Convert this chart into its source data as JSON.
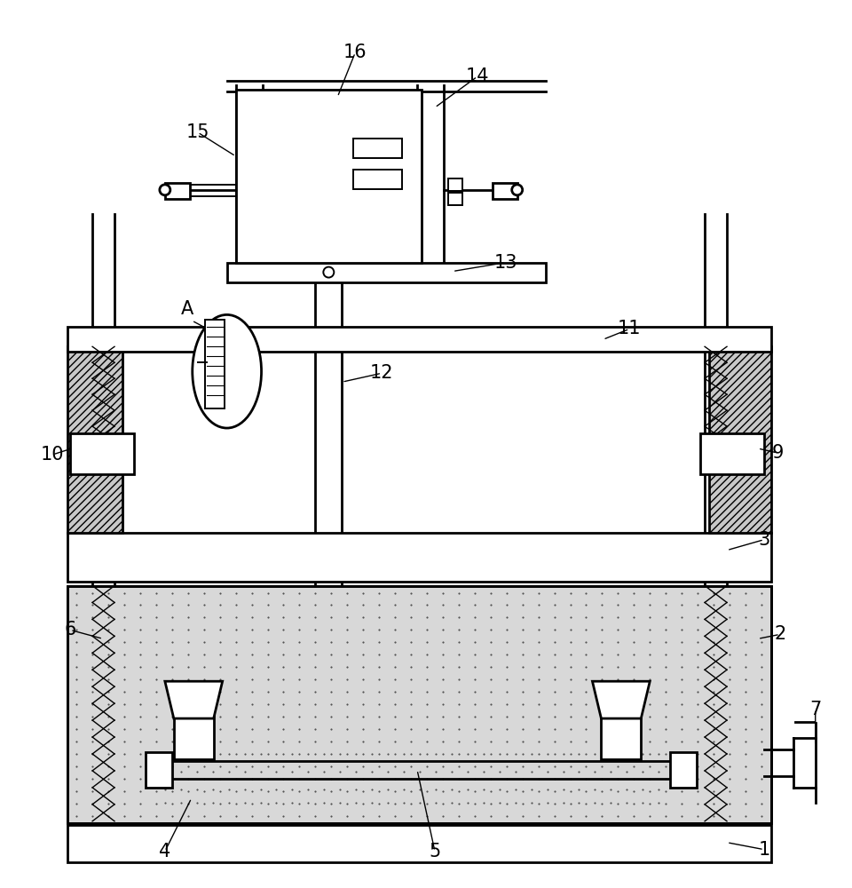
{
  "bg_color": "#ffffff",
  "figsize": [
    9.6,
    10.0
  ],
  "dpi": 100,
  "lw": 1.4,
  "lw2": 2.0,
  "gray_hatch": "#aaaaaa",
  "stipple_gray": "#d8d8d8"
}
